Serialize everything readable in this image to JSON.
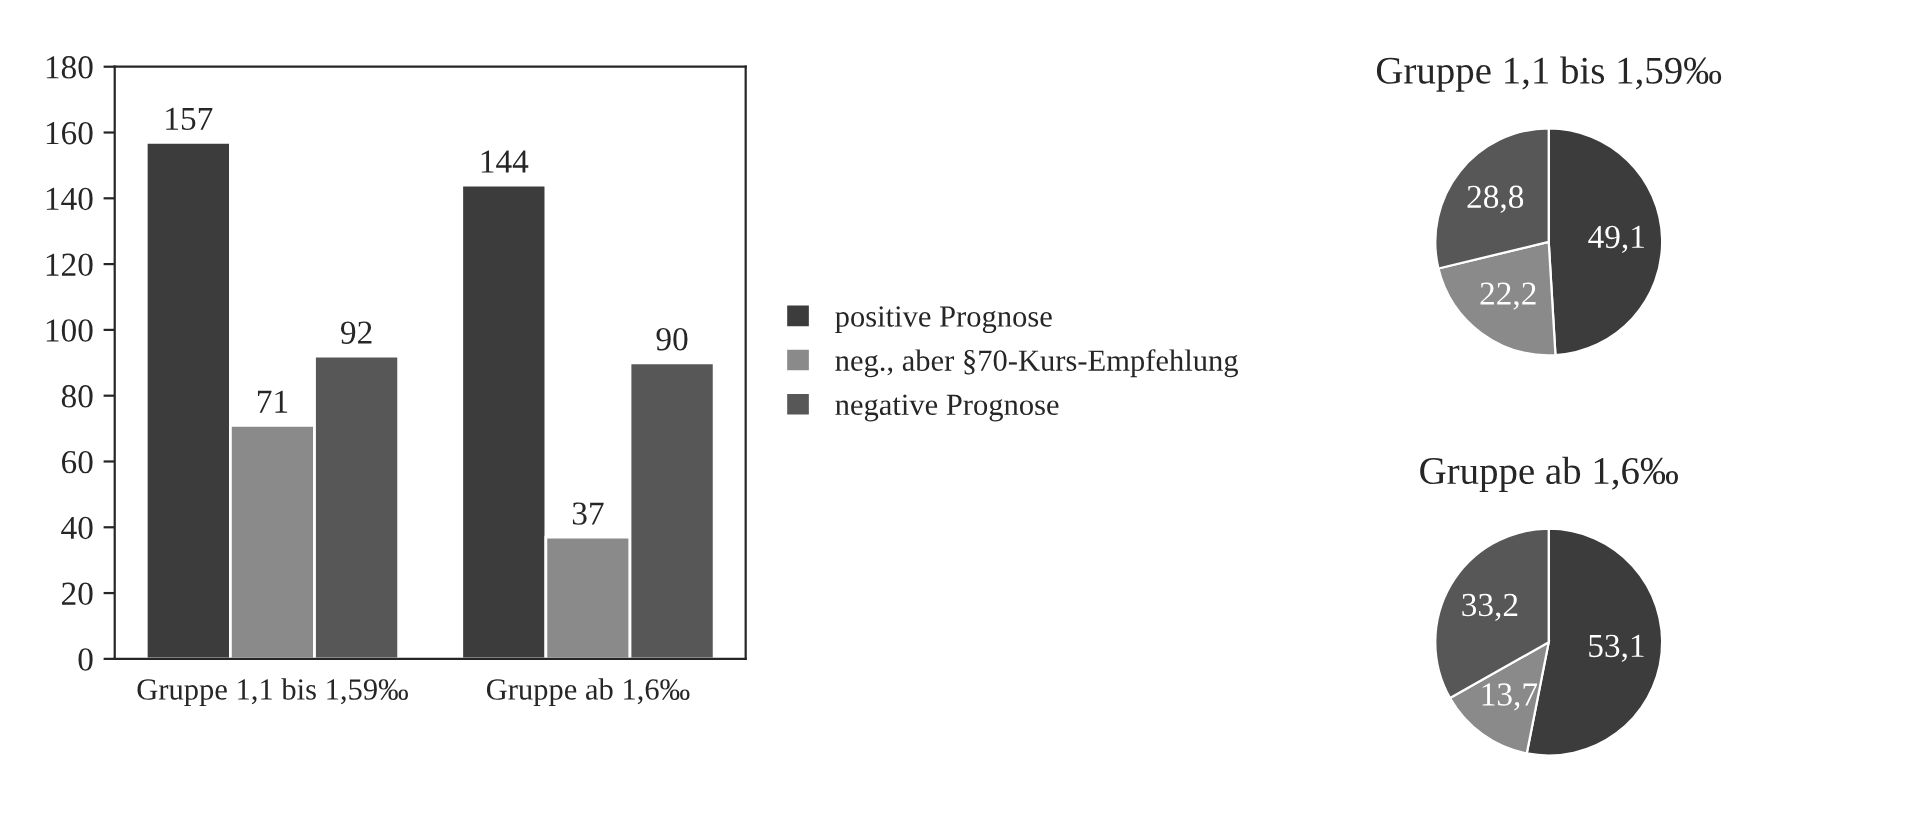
{
  "chart_data": [
    {
      "type": "bar",
      "categories": [
        "Gruppe 1,1 bis 1,59‰",
        "Gruppe ab 1,6‰"
      ],
      "series": [
        {
          "name": "positive Prognose",
          "color": "#3c3c3c",
          "values": [
            157,
            144
          ]
        },
        {
          "name": "neg., aber §70-Kurs-Empfehlung",
          "color": "#8a8a8a",
          "values": [
            71,
            37
          ]
        },
        {
          "name": "negative Prognose",
          "color": "#575757",
          "values": [
            92,
            90
          ]
        }
      ],
      "ylim": [
        0,
        180
      ],
      "yticks": [
        0,
        20,
        40,
        60,
        80,
        100,
        120,
        140,
        160,
        180
      ],
      "data_labels": true,
      "grid": false,
      "legend": "right"
    },
    {
      "type": "pie",
      "title": "Gruppe 1,1 bis 1,59‰",
      "categories": [
        null,
        null,
        null
      ],
      "values": [
        49.1,
        22.2,
        28.8
      ],
      "value_labels": [
        "49,1",
        "22,2",
        "28,8"
      ],
      "colors": [
        "#3c3c3c",
        "#8a8a8a",
        "#575757"
      ]
    },
    {
      "type": "pie",
      "title": "Gruppe ab 1,6‰",
      "categories": [
        null,
        null,
        null
      ],
      "values": [
        53.1,
        13.7,
        33.2
      ],
      "value_labels": [
        "53,1",
        "13,7",
        "33,2"
      ],
      "colors": [
        "#3c3c3c",
        "#8a8a8a",
        "#575757"
      ]
    }
  ]
}
